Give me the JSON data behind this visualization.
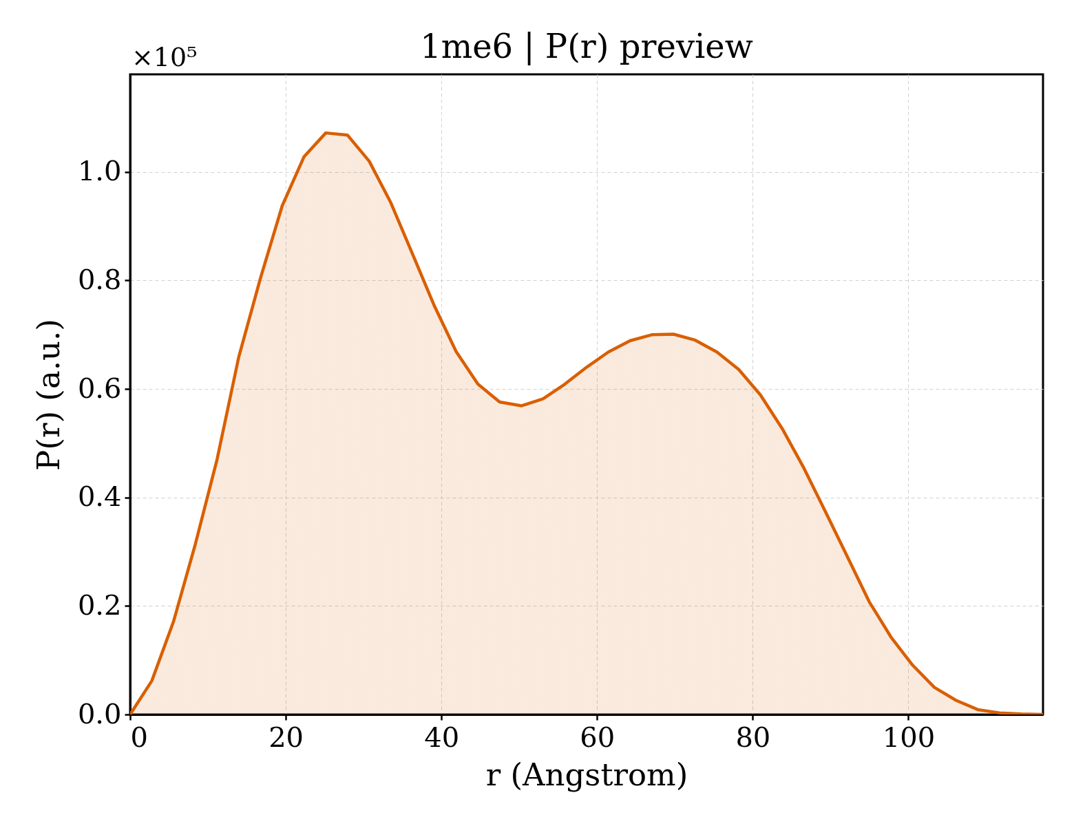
{
  "chart_data": {
    "type": "area",
    "title": "1me6 | P(r) preview",
    "xlabel": "r (Angstrom)",
    "ylabel": "P(r) (a.u.)",
    "annotations": [
      "×10⁵"
    ],
    "x": [
      0,
      2.79,
      5.59,
      8.38,
      11.17,
      13.96,
      16.76,
      19.55,
      22.34,
      25.14,
      27.93,
      30.72,
      33.51,
      36.31,
      39.1,
      41.89,
      44.69,
      47.48,
      50.27,
      53.06,
      55.86,
      58.65,
      61.44,
      64.24,
      67.03,
      69.82,
      72.61,
      75.41,
      78.2,
      80.99,
      83.79,
      86.58,
      89.37,
      92.16,
      94.96,
      97.75,
      100.54,
      103.34,
      106.13,
      108.92,
      111.71,
      114.51,
      117.3
    ],
    "values": [
      0,
      0.062,
      0.172,
      0.314,
      0.47,
      0.659,
      0.805,
      0.938,
      1.028,
      1.072,
      1.068,
      1.02,
      0.943,
      0.848,
      0.753,
      0.669,
      0.609,
      0.576,
      0.569,
      0.582,
      0.609,
      0.64,
      0.668,
      0.689,
      0.7,
      0.701,
      0.69,
      0.668,
      0.636,
      0.589,
      0.527,
      0.454,
      0.373,
      0.291,
      0.208,
      0.143,
      0.091,
      0.05,
      0.026,
      0.009,
      0.003,
      0.001,
      0
    ],
    "color": "#d95f02",
    "xlim": [
      0,
      117.3
    ],
    "xticks": [
      0,
      20,
      40,
      60,
      80,
      100
    ],
    "ylim": [
      0,
      1.18
    ],
    "yticks": [
      {
        "value": 0,
        "label": "0.0"
      },
      0.2,
      0.4,
      0.6,
      0.8,
      {
        "value": 1,
        "label": "1.0"
      }
    ],
    "grid": true,
    "line_style": "solid"
  }
}
